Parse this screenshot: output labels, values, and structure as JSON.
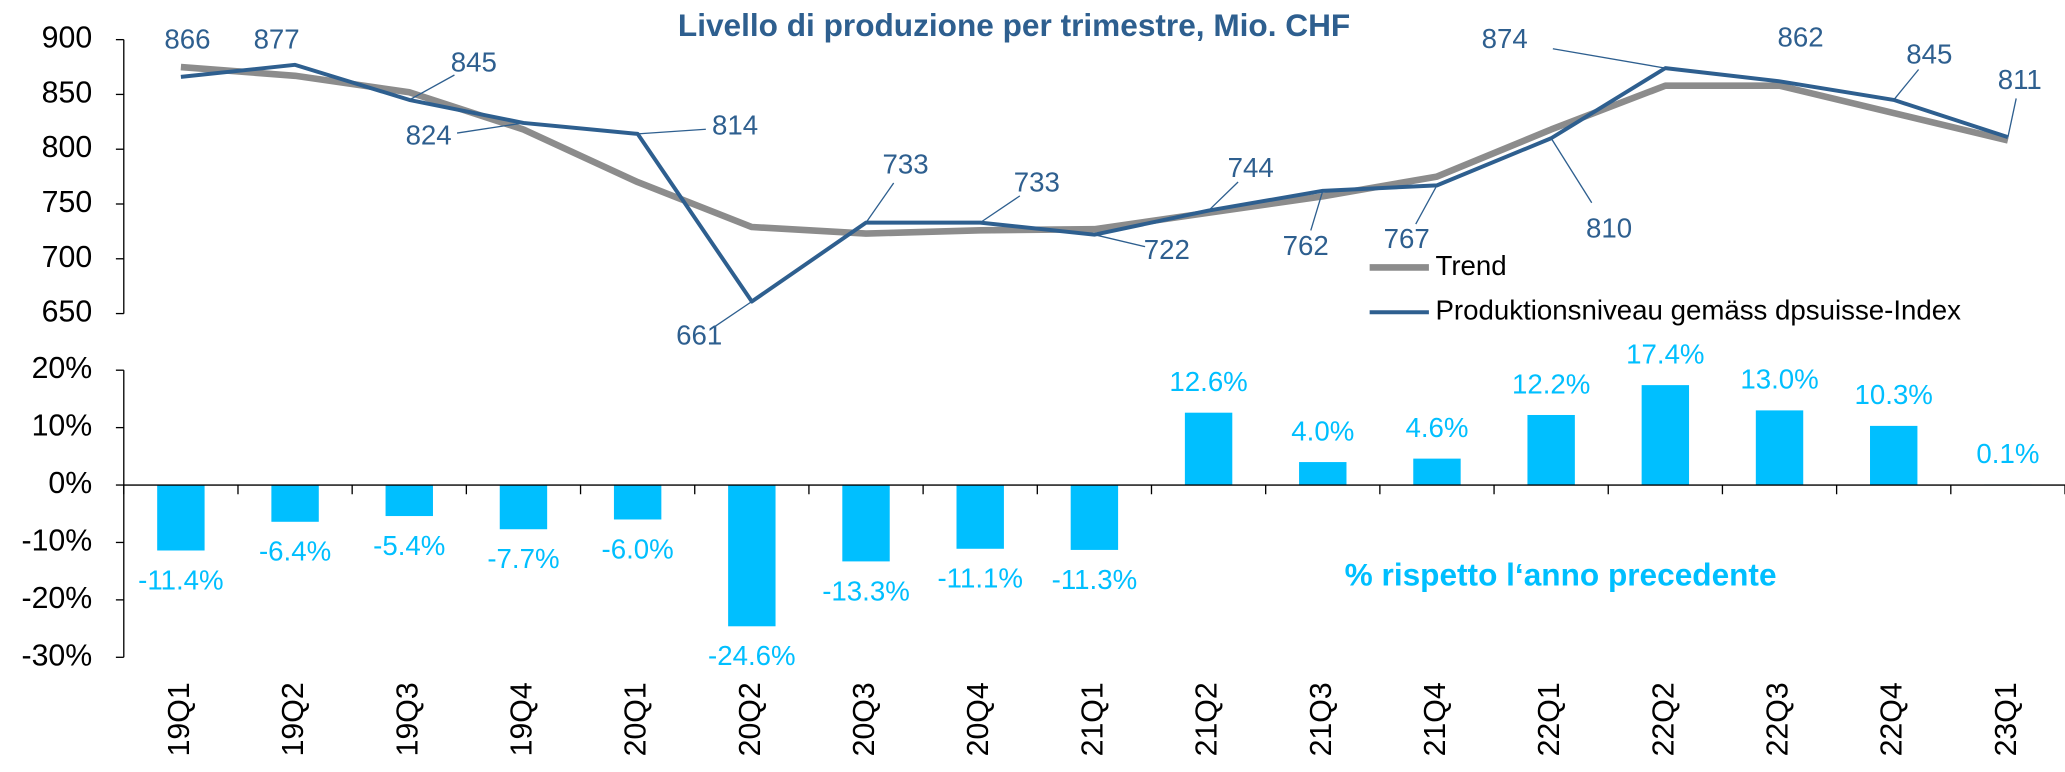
{
  "chart_data": [
    {
      "type": "line",
      "title": "Livello di produzione per trimestre, Mio. CHF",
      "ylim": [
        650,
        900
      ],
      "yticks": [
        650,
        700,
        750,
        800,
        850,
        900
      ],
      "legend": "bottom-right",
      "series": [
        {
          "name": "Trend",
          "color": "#8c8c8c",
          "values": [
            875,
            867,
            852,
            818,
            770,
            729,
            723,
            726,
            727,
            742,
            757,
            775,
            818,
            858,
            858,
            833,
            808
          ]
        },
        {
          "name": "Produktionsniveau gemäss dpsuisse-Index",
          "color": "#2e5f8f",
          "values": [
            866,
            877,
            845,
            824,
            814,
            661,
            733,
            733,
            722,
            744,
            762,
            767,
            810,
            874,
            862,
            845,
            811
          ]
        }
      ]
    },
    {
      "type": "bar",
      "title": "% rispetto l‘anno precedente",
      "categories": [
        "19Q1",
        "19Q2",
        "19Q3",
        "19Q4",
        "20Q1",
        "20Q2",
        "20Q3",
        "20Q4",
        "21Q1",
        "21Q2",
        "21Q3",
        "21Q4",
        "22Q1",
        "22Q2",
        "22Q3",
        "22Q4",
        "23Q1"
      ],
      "values": [
        -11.4,
        -6.4,
        -5.4,
        -7.7,
        -6.0,
        -24.6,
        -13.3,
        -11.1,
        -11.3,
        12.6,
        4.0,
        4.6,
        12.2,
        17.4,
        13.0,
        10.3,
        0.1
      ],
      "value_labels": [
        "-11.4%",
        "-6.4%",
        "-5.4%",
        "-7.7%",
        "-6.0%",
        "-24.6%",
        "-13.3%",
        "-11.1%",
        "-11.3%",
        "12.6%",
        "4.0%",
        "4.6%",
        "12.2%",
        "17.4%",
        "13.0%",
        "10.3%",
        "0.1%"
      ],
      "color": "#00bfff",
      "ylim": [
        -30,
        20
      ],
      "yticks": [
        {
          "value": -30,
          "label": "-30%"
        },
        {
          "value": -20,
          "label": "-20%"
        },
        {
          "value": -10,
          "label": "-10%"
        },
        {
          "value": 0,
          "label": "0%"
        },
        {
          "value": 10,
          "label": "10%"
        },
        {
          "value": 20,
          "label": "20%"
        }
      ]
    }
  ]
}
